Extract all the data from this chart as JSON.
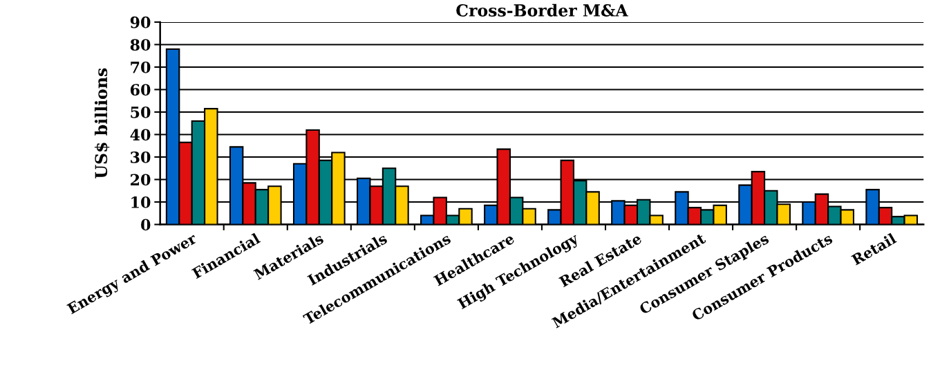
{
  "chart_data": {
    "type": "bar",
    "title": "Cross-Border M&A",
    "ylabel": "US$ billions",
    "categories": [
      "Energy and Power",
      "Financial",
      "Materials",
      "Industrials",
      "Telecommunications",
      "Healthcare",
      "High Technology",
      "Real Estate",
      "Media/Entertainment",
      "Consumer Staples",
      "Consumer Products",
      "Retail"
    ],
    "series": [
      {
        "color": "#0066cc",
        "values": [
          78,
          34.5,
          27,
          20.5,
          4,
          8.5,
          6.5,
          10.5,
          14.5,
          17.5,
          10,
          15.5
        ]
      },
      {
        "color": "#e01010",
        "values": [
          36.5,
          18.5,
          42,
          17,
          12,
          33.5,
          28.5,
          8.5,
          7.5,
          23.5,
          13.5,
          7.5
        ]
      },
      {
        "color": "#008080",
        "values": [
          46,
          15.5,
          28.5,
          25,
          4,
          12,
          19.5,
          11,
          6.5,
          15,
          8,
          3.5
        ]
      },
      {
        "color": "#ffcc00",
        "values": [
          51.5,
          17,
          32,
          17,
          7,
          7,
          14.5,
          4,
          8.5,
          9,
          6.5,
          4
        ]
      }
    ],
    "ylim": [
      0,
      90
    ],
    "yticks": [
      0,
      10,
      20,
      30,
      40,
      50,
      60,
      70,
      80,
      90
    ],
    "grid": "y",
    "legend": false
  }
}
